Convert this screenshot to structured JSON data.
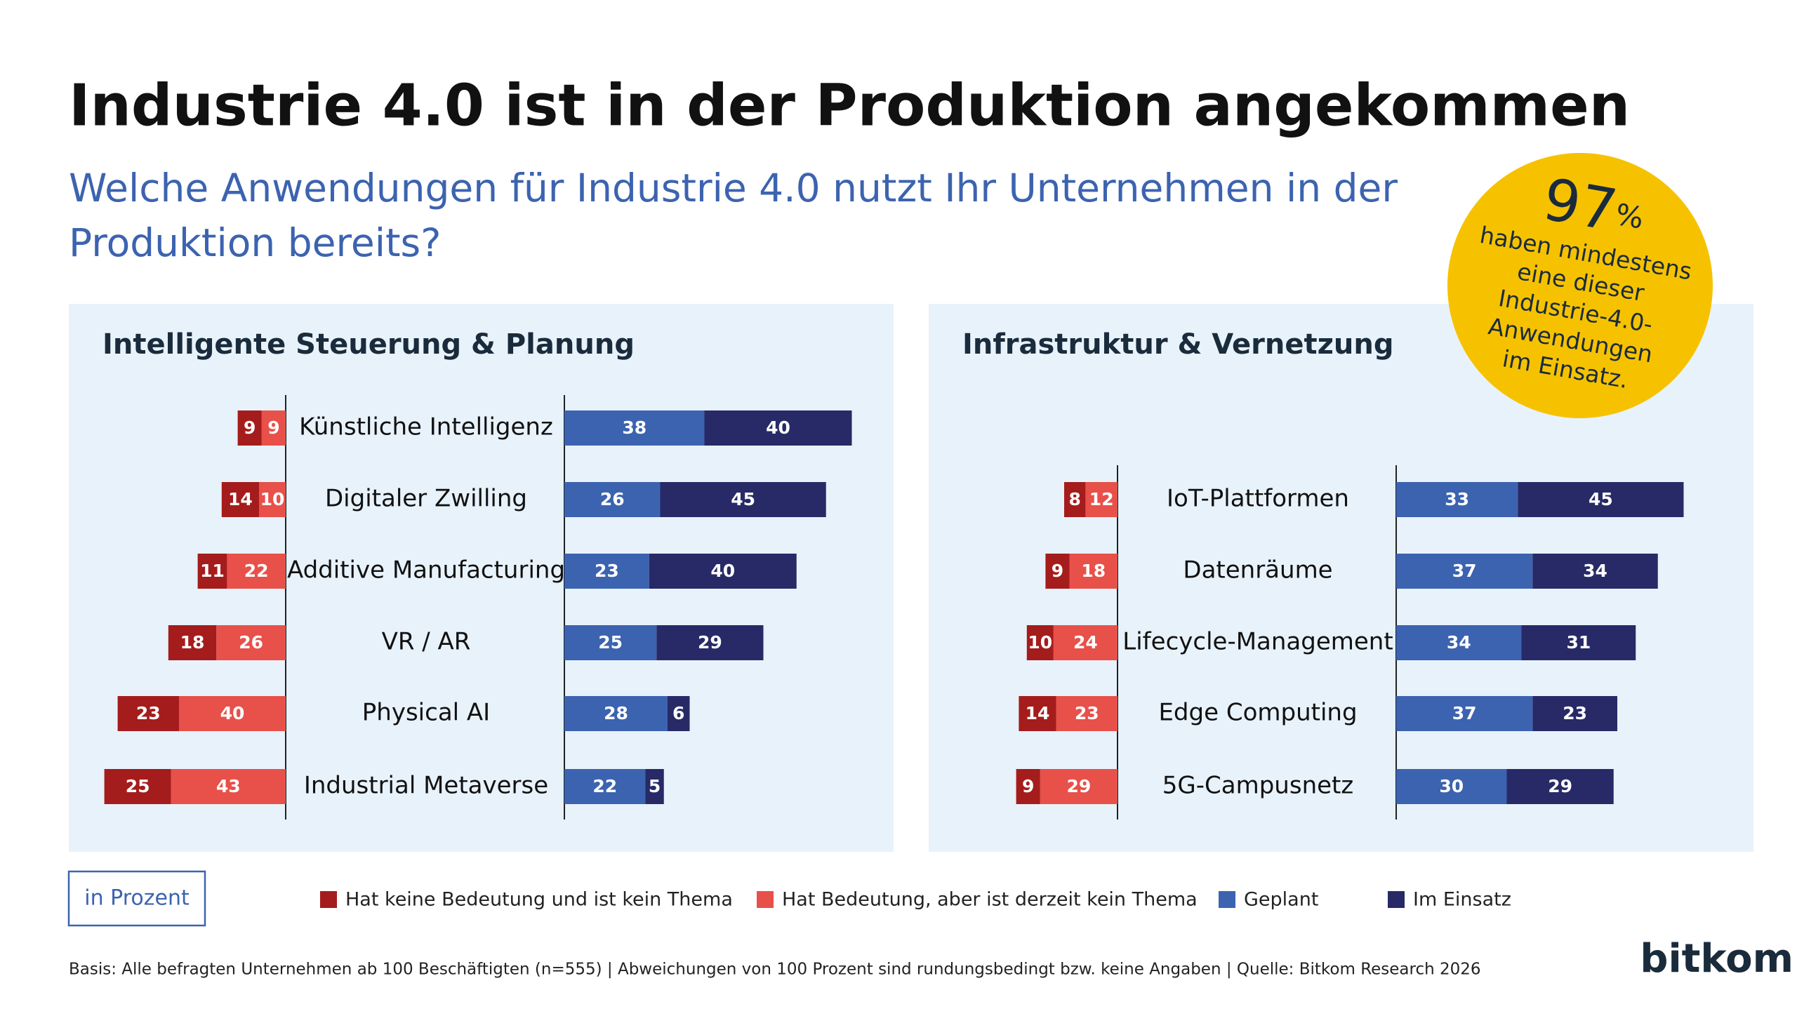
{
  "title": "Industrie 4.0 ist in der Produktion angekommen",
  "subtitle_lines": [
    "Welche Anwendungen für Industrie 4.0 nutzt Ihr Unternehmen in der",
    "Produktion bereits?"
  ],
  "badge": {
    "value": 97,
    "unit": "%",
    "lines": [
      "haben mindestens",
      "eine dieser",
      "Industrie-4.0-",
      "Anwendungen",
      "im Einsatz."
    ]
  },
  "chart_data": {
    "type": "diverging_bar",
    "unit_note": "in Prozent",
    "legend": [
      {
        "name": "Hat keine Bedeutung und ist kein Thema",
        "color": "#a51c1c"
      },
      {
        "name": "Hat Bedeutung, aber ist derzeit kein Thema",
        "color": "#e8504a"
      },
      {
        "name": "Geplant",
        "color": "#3c63b0"
      },
      {
        "name": "Im Einsatz",
        "color": "#272a66"
      }
    ],
    "panels": [
      {
        "title": "Intelligente Steuerung & Planung",
        "categories": [
          "Künstliche Intelligenz",
          "Digitaler Zwilling",
          "Additive Manufacturing",
          "VR / AR",
          "Physical AI",
          "Industrial Metaverse"
        ],
        "series": [
          {
            "values": [
              9,
              14,
              11,
              18,
              23,
              25
            ]
          },
          {
            "values": [
              9,
              10,
              22,
              26,
              40,
              43
            ]
          },
          {
            "values": [
              38,
              26,
              23,
              25,
              28,
              22
            ]
          },
          {
            "values": [
              40,
              45,
              40,
              29,
              6,
              5
            ]
          }
        ]
      },
      {
        "title": "Infrastruktur & Vernetzung",
        "categories": [
          "IoT-Plattformen",
          "Datenräume",
          "Lifecycle-Management",
          "Edge Computing",
          "5G-Campusnetz"
        ],
        "series": [
          {
            "values": [
              8,
              9,
              10,
              14,
              9
            ]
          },
          {
            "values": [
              12,
              18,
              24,
              23,
              29
            ]
          },
          {
            "values": [
              33,
              37,
              34,
              37,
              30
            ]
          },
          {
            "values": [
              45,
              34,
              31,
              23,
              29
            ]
          }
        ]
      }
    ]
  },
  "footnote": "Basis: Alle befragten Unternehmen ab 100 Beschäftigten (n=555) | Abweichungen von 100 Prozent sind rundungsbedingt bzw. keine Angaben | Quelle: Bitkom Research 2026",
  "logo": "bitkom"
}
